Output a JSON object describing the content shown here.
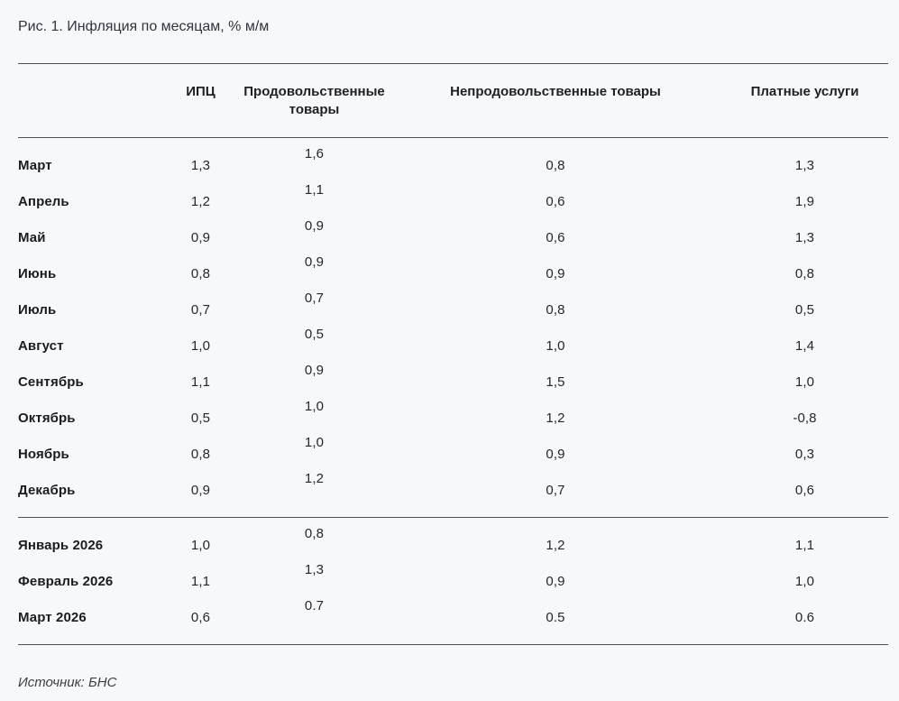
{
  "page": {
    "title": "Рис. 1. Инфляция по месяцам, % м/м",
    "source": "Источник: БНС"
  },
  "table": {
    "headers": {
      "month": "",
      "cpi": "ИПЦ",
      "food": "Продовольственные товары",
      "nonfood": "Непродовольственные товары",
      "services": "Платные услуги"
    },
    "sections": [
      {
        "rows": [
          {
            "month": "Март",
            "cpi": "1,3",
            "food": "1,6",
            "nonfood": "0,8",
            "services": "1,3"
          },
          {
            "month": "Апрель",
            "cpi": "1,2",
            "food": "1,1",
            "nonfood": "0,6",
            "services": "1,9"
          },
          {
            "month": "Май",
            "cpi": "0,9",
            "food": "0,9",
            "nonfood": "0,6",
            "services": "1,3"
          },
          {
            "month": "Июнь",
            "cpi": "0,8",
            "food": "0,9",
            "nonfood": "0,9",
            "services": "0,8"
          },
          {
            "month": "Июль",
            "cpi": "0,7",
            "food": "0,7",
            "nonfood": "0,8",
            "services": "0,5"
          },
          {
            "month": "Август",
            "cpi": "1,0",
            "food": "0,5",
            "nonfood": "1,0",
            "services": "1,4"
          },
          {
            "month": "Сентябрь",
            "cpi": "1,1",
            "food": "0,9",
            "nonfood": "1,5",
            "services": "1,0"
          },
          {
            "month": "Октябрь",
            "cpi": "0,5",
            "food": "1,0",
            "nonfood": "1,2",
            "services": "-0,8"
          },
          {
            "month": "Ноябрь",
            "cpi": "0,8",
            "food": "1,0",
            "nonfood": "0,9",
            "services": "0,3"
          },
          {
            "month": "Декабрь",
            "cpi": "0,9",
            "food": "1,2",
            "nonfood": "0,7",
            "services": "0,6"
          }
        ]
      },
      {
        "rows": [
          {
            "month": "Январь 2026",
            "cpi": "1,0",
            "food": "0,8",
            "nonfood": "1,2",
            "services": "1,1"
          },
          {
            "month": "Февраль 2026",
            "cpi": "1,1",
            "food": "1,3",
            "nonfood": "0,9",
            "services": "1,0"
          },
          {
            "month": "Март 2026",
            "cpi": "0,6",
            "food": "0.7",
            "nonfood": "0.5",
            "services": "0.6"
          }
        ]
      }
    ]
  },
  "colors": {
    "background": "#f7f8f9",
    "rule": "#4d5055",
    "text": "#26272c"
  }
}
